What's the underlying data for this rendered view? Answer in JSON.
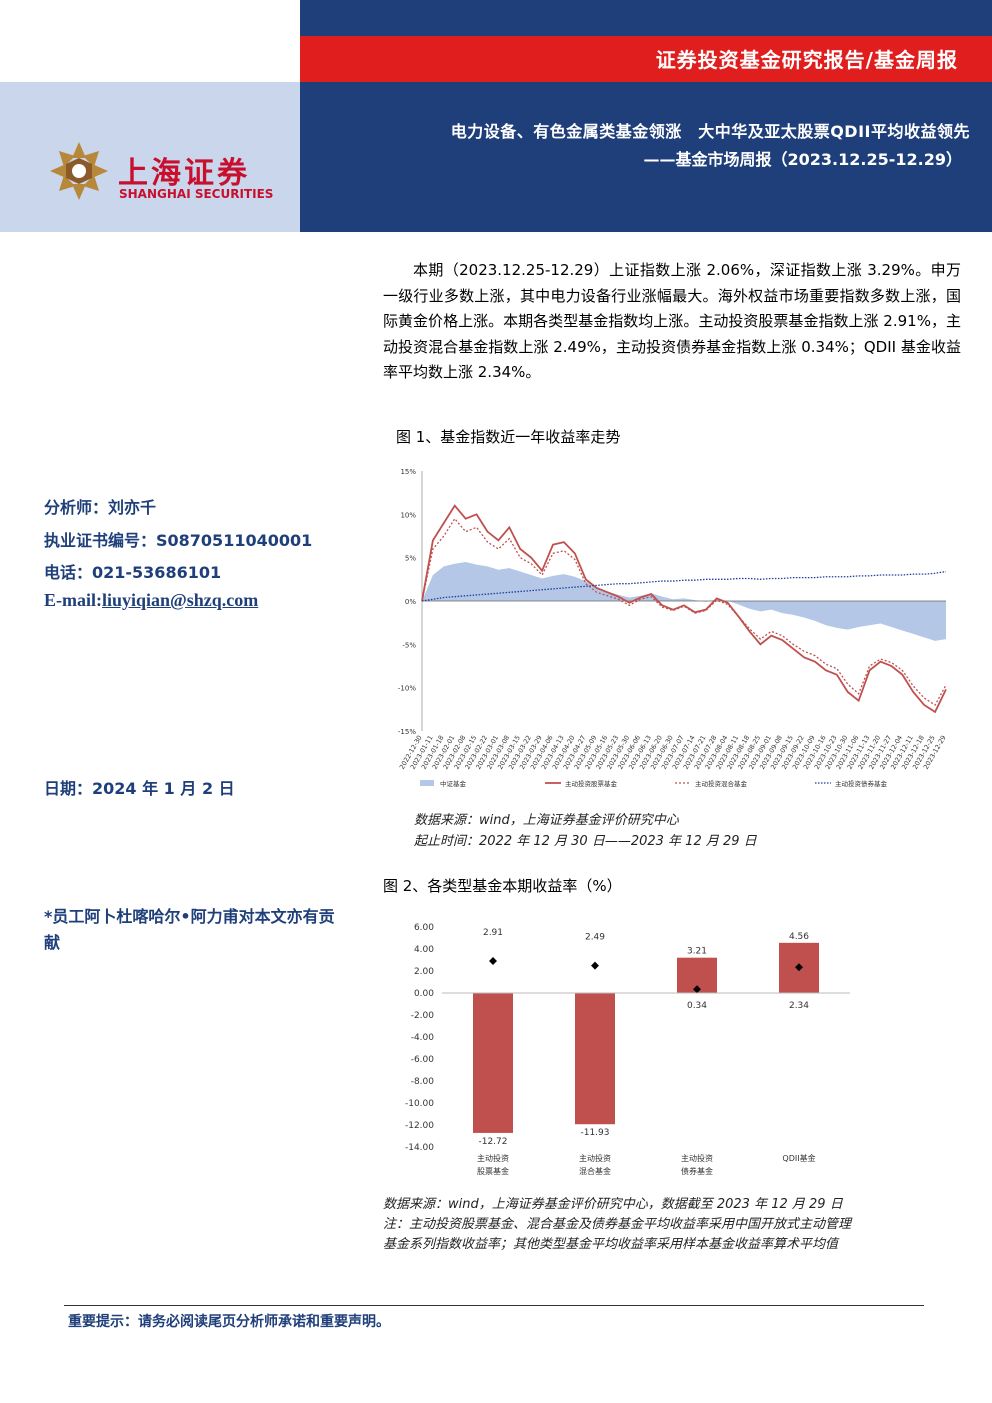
{
  "header": {
    "report_type": "证券投资基金研究报告/基金周报",
    "title": "电力设备、有色金属类基金领涨　大中华及亚太股票QDII平均收益领先",
    "subtitle": "——基金市场周报（2023.12.25-12.29）",
    "logo_cn": "上海证券",
    "logo_en": "SHANGHAI SECURITIES"
  },
  "summary": "本期（2023.12.25-12.29）上证指数上涨 2.06%，深证指数上涨 3.29%。申万一级行业多数上涨，其中电力设备行业涨幅最大。海外权益市场重要指数多数上涨，国际黄金价格上涨。本期各类型基金指数均上涨。主动投资股票基金指数上涨 2.91%，主动投资混合基金指数上涨 2.49%，主动投资债券基金指数上涨 0.34%；QDII 基金收益率平均数上涨 2.34%。",
  "sidebar": {
    "analyst": "分析师：刘亦千",
    "license": "执业证书编号：S0870511040001",
    "phone": "电话：021-53686101",
    "email_label": "E-mail:",
    "email": "liuyiqian@shzq.com",
    "date": "日期：2024 年 1 月 2 日",
    "contribution": "*员工阿卜杜喀哈尔•阿力甫对本文亦有贡献"
  },
  "figure1": {
    "caption": "图 1、基金指数近一年收益率走势",
    "source": "数据来源：wind，上海证券基金评价研究中心",
    "period": "起止时间：2022 年 12 月 30 日——2023 年 12 月 29 日"
  },
  "figure2": {
    "caption": "图 2、各类型基金本期收益率（%）",
    "source": "数据来源：wind，上海证券基金评价研究中心，数据截至 2023 年 12 月 29 日",
    "note1": "注：主动投资股票基金、混合基金及债券基金平均收益率采用中国开放式主动管理",
    "note2": "基金系列指数收益率；其他类型基金平均收益率采用样本基金收益率算术平均值"
  },
  "footer": "重要提示：请务必阅读尾页分析师承诺和重要声明。",
  "colors": {
    "navy": "#1f3f7a",
    "red": "#e01e1e",
    "bar": "#c0504d",
    "area": "#b4c7e7"
  },
  "chart_data": [
    {
      "type": "line",
      "yticks": [
        "15%",
        "10%",
        "5%",
        "0%",
        "-5%",
        "-10%",
        "-15%"
      ],
      "ylim": [
        -15,
        15
      ],
      "x": [
        "2022-12-30",
        "2023-01-11",
        "2023-01-18",
        "2023-02-01",
        "2023-02-08",
        "2023-02-15",
        "2023-02-22",
        "2023-03-01",
        "2023-03-08",
        "2023-03-15",
        "2023-03-22",
        "2023-03-29",
        "2023-04-06",
        "2023-04-13",
        "2023-04-20",
        "2023-04-27",
        "2023-05-09",
        "2023-05-16",
        "2023-05-23",
        "2023-05-30",
        "2023-06-06",
        "2023-06-13",
        "2023-06-20",
        "2023-06-30",
        "2023-07-07",
        "2023-07-14",
        "2023-07-21",
        "2023-07-28",
        "2023-08-04",
        "2023-08-11",
        "2023-08-18",
        "2023-08-25",
        "2023-09-01",
        "2023-09-08",
        "2023-09-15",
        "2023-09-22",
        "2023-10-09",
        "2023-10-16",
        "2023-10-23",
        "2023-10-30",
        "2023-11-06",
        "2023-11-13",
        "2023-11-20",
        "2023-11-27",
        "2023-12-04",
        "2023-12-11",
        "2023-12-18",
        "2023-12-25",
        "2023-12-29"
      ],
      "series": [
        {
          "name": "中证基金",
          "values": [
            0,
            3.0,
            4.0,
            4.3,
            4.5,
            4.2,
            4.0,
            3.6,
            3.8,
            3.4,
            3.0,
            2.6,
            2.9,
            3.1,
            2.8,
            2.3,
            1.6,
            1.1,
            0.7,
            0.4,
            0.6,
            0.9,
            0.5,
            0.2,
            0.3,
            0.1,
            -0.1,
            0.2,
            0.0,
            -0.4,
            -0.9,
            -1.2,
            -1.0,
            -1.4,
            -1.6,
            -1.9,
            -2.3,
            -2.8,
            -3.1,
            -3.3,
            -3.0,
            -2.8,
            -2.6,
            -3.0,
            -3.4,
            -3.8,
            -4.2,
            -4.6,
            -4.4
          ]
        },
        {
          "name": "主动投资股票基金",
          "values": [
            0,
            7.0,
            9.0,
            11.0,
            9.5,
            10.0,
            8.0,
            7.0,
            8.5,
            6.0,
            5.0,
            3.5,
            6.5,
            6.8,
            5.5,
            2.5,
            1.5,
            1.0,
            0.5,
            -0.2,
            0.4,
            0.8,
            -0.5,
            -1.0,
            -0.5,
            -1.3,
            -1.0,
            0.3,
            -0.2,
            -1.8,
            -3.5,
            -5.0,
            -4.0,
            -4.5,
            -5.5,
            -6.5,
            -7.0,
            -8.0,
            -8.5,
            -10.5,
            -11.5,
            -8.0,
            -7.0,
            -7.5,
            -8.5,
            -10.5,
            -12.0,
            -12.8,
            -10.2
          ]
        },
        {
          "name": "主动投资混合基金",
          "values": [
            0,
            6.0,
            7.5,
            9.5,
            8.0,
            8.5,
            6.8,
            6.0,
            7.2,
            5.0,
            4.3,
            3.0,
            5.5,
            5.8,
            4.8,
            2.0,
            1.0,
            0.6,
            0.2,
            -0.5,
            0.2,
            0.5,
            -0.7,
            -1.1,
            -0.6,
            -1.4,
            -1.1,
            0.1,
            -0.4,
            -1.8,
            -3.2,
            -4.4,
            -3.5,
            -4.0,
            -5.0,
            -5.8,
            -6.3,
            -7.3,
            -7.8,
            -9.6,
            -10.7,
            -7.5,
            -6.7,
            -7.1,
            -8.0,
            -9.8,
            -11.2,
            -12.0,
            -9.7
          ]
        },
        {
          "name": "主动投资债券基金",
          "values": [
            0,
            0.2,
            0.4,
            0.5,
            0.6,
            0.7,
            0.8,
            0.9,
            1.0,
            1.1,
            1.2,
            1.3,
            1.4,
            1.5,
            1.6,
            1.7,
            1.8,
            1.9,
            2.0,
            2.0,
            2.1,
            2.2,
            2.3,
            2.3,
            2.4,
            2.4,
            2.5,
            2.5,
            2.5,
            2.6,
            2.6,
            2.5,
            2.6,
            2.6,
            2.7,
            2.7,
            2.7,
            2.8,
            2.8,
            2.8,
            2.9,
            2.9,
            3.0,
            3.0,
            3.0,
            3.1,
            3.1,
            3.2,
            3.4
          ]
        }
      ]
    },
    {
      "type": "bar",
      "categories": [
        [
          "主动投资",
          "股票基金"
        ],
        [
          "主动投资",
          "混合基金"
        ],
        [
          "主动投资",
          "债券基金"
        ],
        [
          "QDII基金"
        ]
      ],
      "yticks": [
        "6.00",
        "4.00",
        "2.00",
        "0.00",
        "-2.00",
        "-4.00",
        "-6.00",
        "-8.00",
        "-10.00",
        "-12.00",
        "-14.00"
      ],
      "ylim": [
        -14,
        6
      ],
      "series": [
        {
          "name": "",
          "kind": "bar",
          "values": [
            -12.72,
            -11.93,
            3.21,
            4.56
          ],
          "labels": [
            "-12.72",
            "-11.93",
            "3.21",
            "4.56"
          ]
        },
        {
          "name": "",
          "kind": "marker",
          "values": [
            2.91,
            2.49,
            0.34,
            2.34
          ],
          "labels": [
            "2.91",
            "2.49",
            "0.34",
            "2.34"
          ]
        }
      ]
    }
  ]
}
